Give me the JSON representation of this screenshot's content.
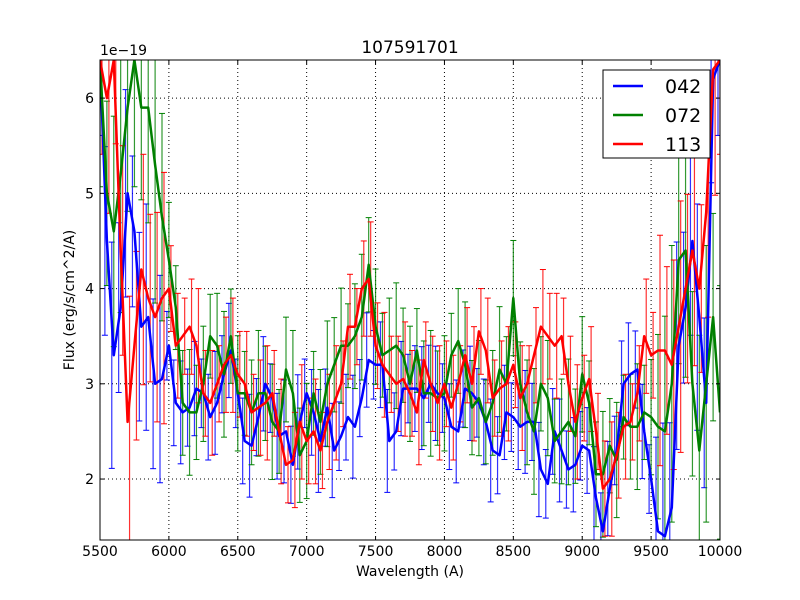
{
  "chart_data": {
    "type": "line",
    "title": "107591701",
    "xlabel": "Wavelength (A)",
    "ylabel": "Flux (erg/s/cm^2/A)",
    "y_offset_label": "1e−19",
    "xlim": [
      5500,
      10000
    ],
    "ylim": [
      1.36,
      6.4
    ],
    "xticks": [
      5500,
      6000,
      6500,
      7000,
      7500,
      8000,
      8500,
      9000,
      9500,
      10000
    ],
    "yticks": [
      2,
      3,
      4,
      5,
      6
    ],
    "grid": true,
    "legend_position": "top-right",
    "x": [
      5500,
      5550,
      5600,
      5650,
      5700,
      5750,
      5800,
      5850,
      5900,
      5950,
      6000,
      6050,
      6100,
      6150,
      6200,
      6250,
      6300,
      6350,
      6400,
      6450,
      6500,
      6550,
      6600,
      6650,
      6700,
      6750,
      6800,
      6850,
      6900,
      6950,
      7000,
      7050,
      7100,
      7150,
      7200,
      7250,
      7300,
      7350,
      7400,
      7450,
      7500,
      7550,
      7600,
      7650,
      7700,
      7750,
      7800,
      7850,
      7900,
      7950,
      8000,
      8050,
      8100,
      8150,
      8200,
      8250,
      8300,
      8350,
      8400,
      8450,
      8500,
      8550,
      8600,
      8650,
      8700,
      8750,
      8800,
      8850,
      8900,
      8950,
      9000,
      9050,
      9100,
      9150,
      9200,
      9250,
      9300,
      9350,
      9400,
      9450,
      9500,
      9550,
      9600,
      9650,
      9700,
      9750,
      9800,
      9850,
      9900,
      9950,
      10000
    ],
    "series": [
      {
        "name": "042",
        "color": "#0000ff",
        "yerr": 0.45,
        "values": [
          6.4,
          4.5,
          3.3,
          3.8,
          5.0,
          4.6,
          3.6,
          3.7,
          3.0,
          3.05,
          3.4,
          2.8,
          2.7,
          2.75,
          2.95,
          2.9,
          2.65,
          2.8,
          3.1,
          3.35,
          2.9,
          2.4,
          2.35,
          2.65,
          3.0,
          2.85,
          2.45,
          2.5,
          2.15,
          2.6,
          2.9,
          2.7,
          2.4,
          2.75,
          2.3,
          2.45,
          2.65,
          2.55,
          2.85,
          3.25,
          3.2,
          3.2,
          2.4,
          2.5,
          2.95,
          2.95,
          2.95,
          2.85,
          3.0,
          2.9,
          2.85,
          2.55,
          2.5,
          2.95,
          2.9,
          2.8,
          2.6,
          2.3,
          2.25,
          2.7,
          2.65,
          2.55,
          2.6,
          2.6,
          2.1,
          1.95,
          2.5,
          2.3,
          2.1,
          2.15,
          2.35,
          2.3,
          1.8,
          1.45,
          1.9,
          2.3,
          3.0,
          3.1,
          3.15,
          2.5,
          2.0,
          1.45,
          1.4,
          1.7,
          3.4,
          3.8,
          4.5,
          3.7,
          2.8,
          6.2,
          6.4
        ]
      },
      {
        "name": "072",
        "color": "#008000",
        "yerr": 0.55,
        "values": [
          6.4,
          5.0,
          4.6,
          5.2,
          5.9,
          6.4,
          5.9,
          5.9,
          5.3,
          4.75,
          4.3,
          3.8,
          2.8,
          2.7,
          2.7,
          3.0,
          3.5,
          3.4,
          3.1,
          3.5,
          2.9,
          2.9,
          2.7,
          2.9,
          2.9,
          2.6,
          2.5,
          3.15,
          2.9,
          2.25,
          2.4,
          2.9,
          2.6,
          3.0,
          3.2,
          3.4,
          3.4,
          3.5,
          3.7,
          4.25,
          3.6,
          3.3,
          3.35,
          3.4,
          3.3,
          3.0,
          3.35,
          2.9,
          2.9,
          2.85,
          2.9,
          3.3,
          3.45,
          3.2,
          2.75,
          2.85,
          2.6,
          2.8,
          3.15,
          3.0,
          3.9,
          3.0,
          2.7,
          2.5,
          3.0,
          2.85,
          2.4,
          2.5,
          2.6,
          2.45,
          3.1,
          2.8,
          2.05,
          2.05,
          2.35,
          2.2,
          2.65,
          2.55,
          2.55,
          2.7,
          2.65,
          2.55,
          2.5,
          3.0,
          4.3,
          4.4,
          3.0,
          2.3,
          3.0,
          3.7,
          2.7
        ]
      },
      {
        "name": "113",
        "color": "#ff0000",
        "yerr": 0.5,
        "values": [
          6.4,
          6.0,
          6.4,
          4.4,
          2.6,
          3.4,
          4.2,
          3.9,
          3.7,
          3.9,
          4.0,
          3.4,
          3.5,
          3.6,
          3.4,
          2.9,
          2.8,
          3.0,
          3.2,
          3.3,
          3.1,
          3.0,
          2.7,
          2.75,
          2.8,
          2.9,
          2.5,
          2.15,
          2.2,
          2.6,
          2.4,
          2.5,
          2.3,
          2.6,
          2.8,
          3.0,
          3.6,
          3.6,
          4.0,
          4.1,
          3.4,
          3.2,
          3.1,
          3.0,
          3.05,
          2.9,
          2.7,
          3.25,
          3.0,
          2.8,
          3.0,
          2.75,
          3.0,
          3.3,
          3.0,
          3.55,
          3.35,
          2.85,
          2.95,
          3.0,
          3.2,
          2.85,
          3.0,
          3.3,
          3.6,
          3.5,
          3.4,
          3.5,
          3.0,
          2.6,
          2.85,
          3.05,
          2.5,
          1.9,
          2.0,
          2.25,
          2.55,
          2.6,
          2.9,
          3.5,
          3.3,
          3.35,
          3.35,
          3.2,
          3.6,
          4.0,
          4.4,
          4.0,
          4.8,
          6.3,
          6.4
        ]
      }
    ]
  }
}
